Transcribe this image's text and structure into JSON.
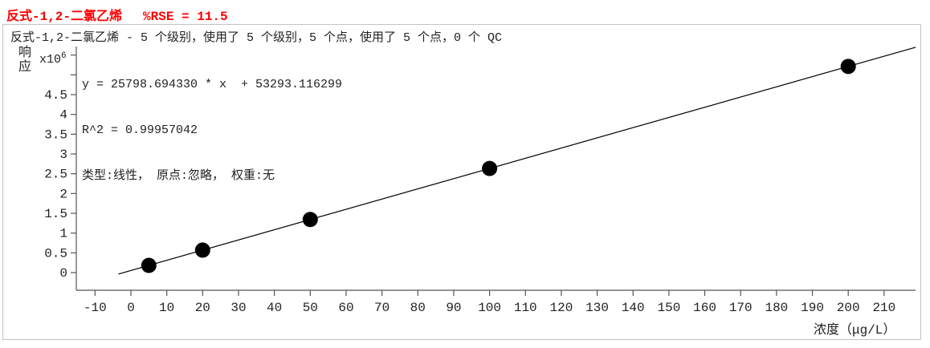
{
  "header": {
    "compound": "反式-1,2-二氯乙烯",
    "rse_text": "%RSE = 11.5",
    "title_color": "#ff0000"
  },
  "subtitle": "反式-1,2-二氯乙烯 - 5 个级别，使用了 5 个级别，5 个点，使用了 5 个点，0 个 QC",
  "annotation": {
    "equation": "y = 25798.694330 * x  + 53293.116299",
    "r_squared": "R^2 = 0.99957042",
    "fit_description": "类型:线性， 原点:忽略， 权重:无"
  },
  "y_axis": {
    "label": "响应",
    "scale_base": "x10",
    "scale_exp": "6"
  },
  "x_axis": {
    "label": "浓度（μg/L）"
  },
  "chart_data": {
    "type": "scatter",
    "title": "反式-1,2-二氯乙烯  %RSE = 11.5",
    "xlabel": "浓度（μg/L）",
    "ylabel": "响应 (x10^6)",
    "rse_percent": 11.5,
    "levels": 5,
    "levels_used": 5,
    "points_count": 5,
    "points_used": 5,
    "qc_count": 0,
    "x_ticks": [
      -10,
      0,
      10,
      20,
      30,
      40,
      50,
      60,
      70,
      80,
      90,
      100,
      110,
      120,
      130,
      140,
      150,
      160,
      170,
      180,
      190,
      200,
      210
    ],
    "y_ticks_labeled": [
      0,
      0.5,
      1,
      1.5,
      2,
      2.5,
      3,
      3.5,
      4,
      4.5
    ],
    "y_ticks_unlabeled": [
      5,
      5.5
    ],
    "y_scale_factor": 1000000,
    "xlim": [
      -15.2,
      218.8
    ],
    "ylim": [
      -450000,
      5720000
    ],
    "grid": false,
    "points": {
      "x": [
        5,
        20,
        50,
        100,
        200
      ],
      "y": [
        182287,
        569267,
        1343228,
        2633163,
        5213032
      ]
    },
    "fit": {
      "type": "linear",
      "slope": 25798.69433,
      "intercept": 53293.116299,
      "r2": 0.99957042,
      "origin": "忽略",
      "weight": "无",
      "x_draw_range": [
        -3.5,
        218.8
      ]
    },
    "point_color": "#000000",
    "line_color": "#000000",
    "axis_color": "#555555"
  }
}
